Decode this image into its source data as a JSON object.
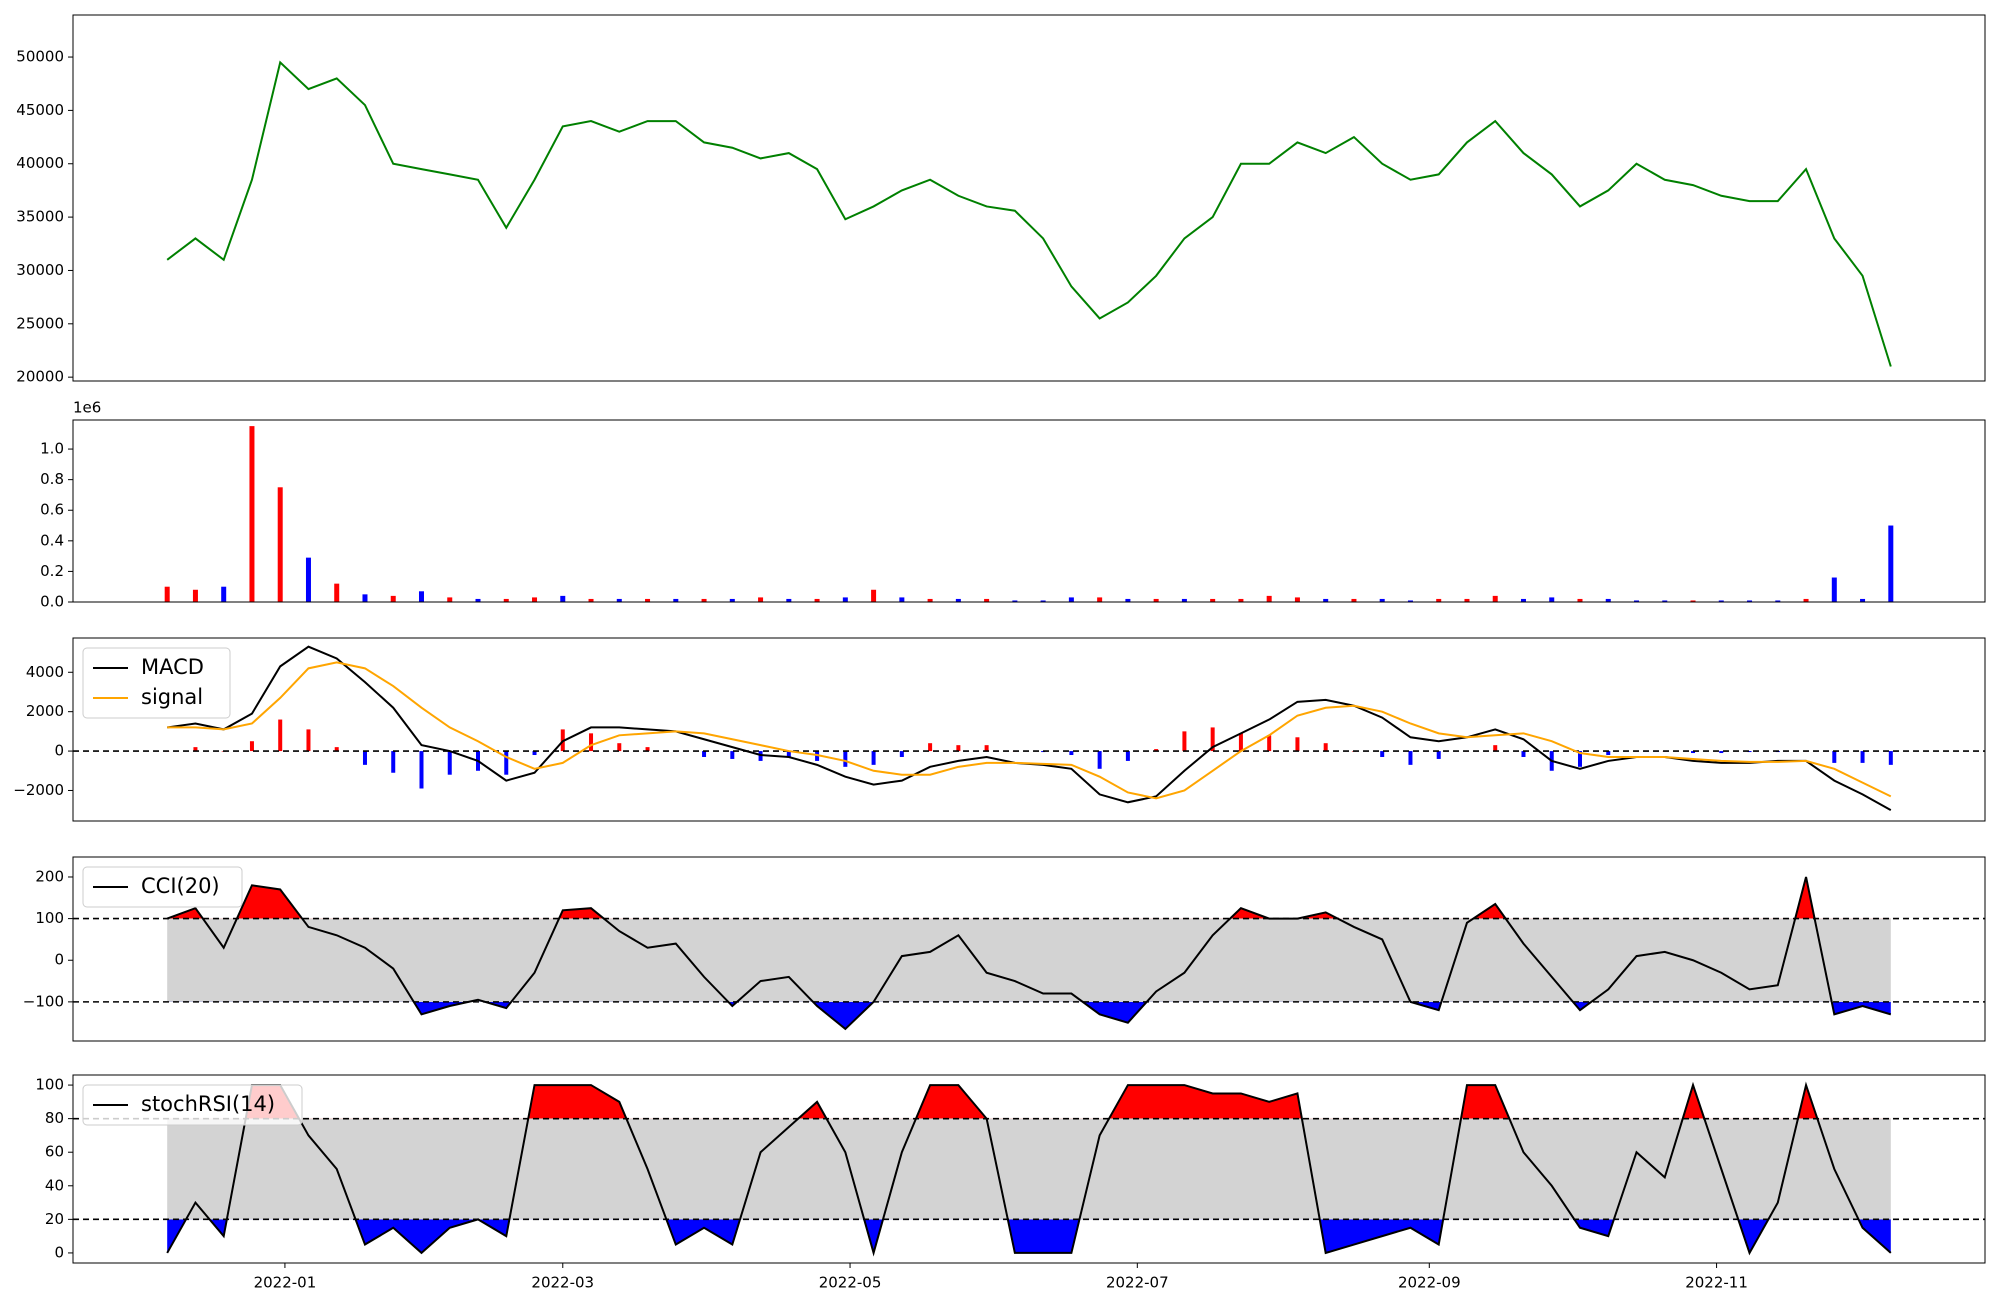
{
  "chart_data": [
    {
      "type": "line",
      "color": "green",
      "x": [
        "2021-12-07",
        "2021-12-13",
        "2021-12-19",
        "2021-12-25",
        "2021-12-31",
        "2022-01-06",
        "2022-01-12",
        "2022-01-18",
        "2022-01-24",
        "2022-01-30",
        "2022-02-05",
        "2022-02-11",
        "2022-02-17",
        "2022-02-23",
        "2022-03-01",
        "2022-03-07",
        "2022-03-13",
        "2022-03-19",
        "2022-03-25",
        "2022-03-31",
        "2022-04-06",
        "2022-04-12",
        "2022-04-18",
        "2022-04-24",
        "2022-04-30",
        "2022-05-06",
        "2022-05-12",
        "2022-05-18",
        "2022-05-24",
        "2022-05-30",
        "2022-06-05",
        "2022-06-11",
        "2022-06-17",
        "2022-06-23",
        "2022-06-29",
        "2022-07-05",
        "2022-07-11",
        "2022-07-17",
        "2022-07-23",
        "2022-07-29",
        "2022-08-04",
        "2022-08-10",
        "2022-08-16",
        "2022-08-22",
        "2022-08-28",
        "2022-09-03",
        "2022-09-09",
        "2022-09-15",
        "2022-09-21",
        "2022-09-27",
        "2022-10-03",
        "2022-10-09",
        "2022-10-15",
        "2022-10-21",
        "2022-10-27",
        "2022-11-02",
        "2022-11-08",
        "2022-11-14",
        "2022-11-20",
        "2022-11-26",
        "2022-12-02",
        "2022-12-08"
      ],
      "values": [
        31000,
        33000,
        31000,
        38500,
        49500,
        47000,
        48000,
        45500,
        40000,
        39500,
        39000,
        38500,
        34000,
        38500,
        43500,
        44000,
        43000,
        44000,
        44000,
        42000,
        41500,
        40500,
        41000,
        39500,
        34800,
        36000,
        37500,
        38500,
        37000,
        36000,
        35600,
        33000,
        28500,
        25500,
        27000,
        29500,
        33000,
        35000,
        40000,
        40000,
        42000,
        41000,
        42500,
        40000,
        38500,
        39000,
        42000,
        44000,
        41000,
        39000,
        36000,
        37500,
        40000,
        38500,
        38000,
        37000,
        36500,
        36500,
        39500,
        33000,
        29500,
        21000
      ],
      "xlim": [
        "2021-11-17",
        "2022-12-28"
      ],
      "ylim": [
        19640,
        53940
      ],
      "yticks": [
        20000,
        25000,
        30000,
        35000,
        40000,
        45000,
        50000
      ]
    },
    {
      "type": "bar",
      "offset_label": "1e6",
      "x": [
        "2021-12-07",
        "2021-12-13",
        "2021-12-19",
        "2021-12-25",
        "2021-12-31",
        "2022-01-06",
        "2022-01-12",
        "2022-01-18",
        "2022-01-24",
        "2022-01-30",
        "2022-02-05",
        "2022-02-11",
        "2022-02-17",
        "2022-02-23",
        "2022-03-01",
        "2022-03-07",
        "2022-03-13",
        "2022-03-19",
        "2022-03-25",
        "2022-03-31",
        "2022-04-06",
        "2022-04-12",
        "2022-04-18",
        "2022-04-24",
        "2022-04-30",
        "2022-05-06",
        "2022-05-12",
        "2022-05-18",
        "2022-05-24",
        "2022-05-30",
        "2022-06-05",
        "2022-06-11",
        "2022-06-17",
        "2022-06-23",
        "2022-06-29",
        "2022-07-05",
        "2022-07-11",
        "2022-07-17",
        "2022-07-23",
        "2022-07-29",
        "2022-08-04",
        "2022-08-10",
        "2022-08-16",
        "2022-08-22",
        "2022-08-28",
        "2022-09-03",
        "2022-09-09",
        "2022-09-15",
        "2022-09-21",
        "2022-09-27",
        "2022-10-03",
        "2022-10-09",
        "2022-10-15",
        "2022-10-21",
        "2022-10-27",
        "2022-11-02",
        "2022-11-08",
        "2022-11-14",
        "2022-11-20",
        "2022-11-26",
        "2022-12-02",
        "2022-12-08"
      ],
      "values": [
        0.1,
        0.08,
        0.1,
        1.15,
        0.75,
        0.29,
        0.12,
        0.05,
        0.04,
        0.07,
        0.03,
        0.02,
        0.02,
        0.03,
        0.04,
        0.02,
        0.02,
        0.02,
        0.02,
        0.02,
        0.02,
        0.03,
        0.02,
        0.02,
        0.03,
        0.08,
        0.03,
        0.02,
        0.02,
        0.02,
        0.01,
        0.01,
        0.03,
        0.03,
        0.02,
        0.02,
        0.02,
        0.02,
        0.02,
        0.04,
        0.03,
        0.02,
        0.02,
        0.02,
        0.01,
        0.02,
        0.02,
        0.04,
        0.02,
        0.03,
        0.02,
        0.02,
        0.01,
        0.01,
        0.01,
        0.01,
        0.01,
        0.01,
        0.02,
        0.16,
        0.02,
        0.5
      ],
      "colors": [
        "red",
        "red",
        "blue",
        "red",
        "red",
        "blue",
        "red",
        "blue",
        "red",
        "blue",
        "red",
        "blue",
        "red",
        "red",
        "blue",
        "red",
        "blue",
        "red",
        "blue",
        "red",
        "blue",
        "red",
        "blue",
        "red",
        "blue",
        "red",
        "blue",
        "red",
        "blue",
        "red",
        "blue",
        "blue",
        "blue",
        "red",
        "blue",
        "red",
        "blue",
        "red",
        "red",
        "red",
        "red",
        "blue",
        "red",
        "blue",
        "blue",
        "red",
        "red",
        "red",
        "blue",
        "blue",
        "red",
        "blue",
        "blue",
        "blue",
        "red",
        "blue",
        "blue",
        "blue",
        "red",
        "blue",
        "blue",
        "blue"
      ],
      "xlim": [
        "2021-11-17",
        "2022-12-28"
      ],
      "ylim": [
        0,
        1.19
      ],
      "yticks": [
        {
          "value": 0,
          "label": "0.0"
        },
        0.2,
        0.4,
        0.6,
        0.8,
        {
          "value": 1,
          "label": "1.0"
        }
      ]
    },
    {
      "type": "macd",
      "legend": "upper left",
      "x": [
        "2021-12-07",
        "2021-12-13",
        "2021-12-19",
        "2021-12-25",
        "2021-12-31",
        "2022-01-06",
        "2022-01-12",
        "2022-01-18",
        "2022-01-24",
        "2022-01-30",
        "2022-02-05",
        "2022-02-11",
        "2022-02-17",
        "2022-02-23",
        "2022-03-01",
        "2022-03-07",
        "2022-03-13",
        "2022-03-19",
        "2022-03-25",
        "2022-03-31",
        "2022-04-06",
        "2022-04-12",
        "2022-04-18",
        "2022-04-24",
        "2022-04-30",
        "2022-05-06",
        "2022-05-12",
        "2022-05-18",
        "2022-05-24",
        "2022-05-30",
        "2022-06-05",
        "2022-06-11",
        "2022-06-17",
        "2022-06-23",
        "2022-06-29",
        "2022-07-05",
        "2022-07-11",
        "2022-07-17",
        "2022-07-23",
        "2022-07-29",
        "2022-08-04",
        "2022-08-10",
        "2022-08-16",
        "2022-08-22",
        "2022-08-28",
        "2022-09-03",
        "2022-09-09",
        "2022-09-15",
        "2022-09-21",
        "2022-09-27",
        "2022-10-03",
        "2022-10-09",
        "2022-10-15",
        "2022-10-21",
        "2022-10-27",
        "2022-11-02",
        "2022-11-08",
        "2022-11-14",
        "2022-11-20",
        "2022-11-26",
        "2022-12-02",
        "2022-12-08"
      ],
      "series": [
        {
          "name": "MACD",
          "color": "black",
          "values": [
            1200,
            1400,
            1100,
            1900,
            4300,
            5300,
            4700,
            3500,
            2200,
            300,
            0,
            -500,
            -1500,
            -1100,
            500,
            1200,
            1200,
            1100,
            1000,
            600,
            200,
            -200,
            -300,
            -700,
            -1300,
            -1700,
            -1500,
            -800,
            -500,
            -300,
            -600,
            -700,
            -900,
            -2200,
            -2600,
            -2300,
            -1000,
            200,
            900,
            1600,
            2500,
            2600,
            2300,
            1700,
            700,
            500,
            700,
            1100,
            600,
            -500,
            -900,
            -500,
            -300,
            -300,
            -500,
            -600,
            -600,
            -500,
            -500,
            -1500,
            -2200,
            -3000
          ]
        },
        {
          "name": "signal",
          "color": "orange",
          "values": [
            1200,
            1200,
            1100,
            1400,
            2700,
            4200,
            4500,
            4200,
            3300,
            2200,
            1200,
            500,
            -300,
            -900,
            -600,
            300,
            800,
            900,
            1000,
            900,
            600,
            300,
            0,
            -200,
            -500,
            -1000,
            -1200,
            -1200,
            -800,
            -600,
            -600,
            -650,
            -700,
            -1300,
            -2100,
            -2400,
            -2000,
            -1000,
            0,
            800,
            1800,
            2200,
            2300,
            2000,
            1400,
            900,
            700,
            800,
            900,
            500,
            -100,
            -300,
            -300,
            -300,
            -400,
            -500,
            -550,
            -550,
            -500,
            -900,
            -1600,
            -2300
          ]
        }
      ],
      "histogram": {
        "up_color": "red",
        "down_color": "blue",
        "values": [
          0,
          200,
          0,
          500,
          1600,
          1100,
          200,
          -700,
          -1100,
          -1900,
          -1200,
          -1000,
          -1200,
          -200,
          1100,
          900,
          400,
          200,
          0,
          -300,
          -400,
          -500,
          -300,
          -500,
          -800,
          -700,
          -300,
          400,
          300,
          300,
          0,
          -50,
          -200,
          -900,
          -500,
          100,
          1000,
          1200,
          900,
          800,
          700,
          400,
          0,
          -300,
          -700,
          -400,
          0,
          300,
          -300,
          -1000,
          -800,
          -200,
          0,
          0,
          -100,
          -100,
          -50,
          -50,
          0,
          -600,
          -600,
          -700
        ]
      },
      "hline": 0,
      "xlim": [
        "2021-11-17",
        "2022-12-28"
      ],
      "ylim": [
        -3550,
        5740
      ],
      "yticks": [
        {
          "value": -2000,
          "label": "−2000"
        },
        0,
        2000,
        4000
      ]
    },
    {
      "type": "oscillator",
      "legend": "upper left",
      "x": [
        "2021-12-07",
        "2021-12-13",
        "2021-12-19",
        "2021-12-25",
        "2021-12-31",
        "2022-01-06",
        "2022-01-12",
        "2022-01-18",
        "2022-01-24",
        "2022-01-30",
        "2022-02-05",
        "2022-02-11",
        "2022-02-17",
        "2022-02-23",
        "2022-03-01",
        "2022-03-07",
        "2022-03-13",
        "2022-03-19",
        "2022-03-25",
        "2022-03-31",
        "2022-04-06",
        "2022-04-12",
        "2022-04-18",
        "2022-04-24",
        "2022-04-30",
        "2022-05-06",
        "2022-05-12",
        "2022-05-18",
        "2022-05-24",
        "2022-05-30",
        "2022-06-05",
        "2022-06-11",
        "2022-06-17",
        "2022-06-23",
        "2022-06-29",
        "2022-07-05",
        "2022-07-11",
        "2022-07-17",
        "2022-07-23",
        "2022-07-29",
        "2022-08-04",
        "2022-08-10",
        "2022-08-16",
        "2022-08-22",
        "2022-08-28",
        "2022-09-03",
        "2022-09-09",
        "2022-09-15",
        "2022-09-21",
        "2022-09-27",
        "2022-10-03",
        "2022-10-09",
        "2022-10-15",
        "2022-10-21",
        "2022-10-27",
        "2022-11-02",
        "2022-11-08",
        "2022-11-14",
        "2022-11-20",
        "2022-11-26",
        "2022-12-02",
        "2022-12-08"
      ],
      "series": [
        {
          "name": "CCI(20)",
          "color": "black",
          "values": [
            100,
            125,
            30,
            180,
            170,
            80,
            60,
            30,
            -20,
            -130,
            -110,
            -95,
            -115,
            -30,
            120,
            125,
            70,
            30,
            40,
            -40,
            -110,
            -50,
            -40,
            -110,
            -165,
            -100,
            10,
            20,
            60,
            -30,
            -50,
            -80,
            -80,
            -130,
            -150,
            -75,
            -30,
            60,
            125,
            100,
            100,
            115,
            80,
            50,
            -100,
            -120,
            90,
            135,
            40,
            -40,
            -120,
            -70,
            10,
            20,
            0,
            -30,
            -70,
            -60,
            200,
            -130,
            -110,
            -130
          ]
        }
      ],
      "upper": 100,
      "lower": -100,
      "band_color": "lightgray",
      "upper_color": "red",
      "lower_color": "blue",
      "xlim": [
        "2021-11-17",
        "2022-12-28"
      ],
      "ylim": [
        -194,
        248
      ],
      "yticks": [
        {
          "value": -100,
          "label": "−100"
        },
        0,
        100,
        200
      ]
    },
    {
      "type": "oscillator",
      "legend": "upper left",
      "x": [
        "2021-12-07",
        "2021-12-13",
        "2021-12-19",
        "2021-12-25",
        "2021-12-31",
        "2022-01-06",
        "2022-01-12",
        "2022-01-18",
        "2022-01-24",
        "2022-01-30",
        "2022-02-05",
        "2022-02-11",
        "2022-02-17",
        "2022-02-23",
        "2022-03-01",
        "2022-03-07",
        "2022-03-13",
        "2022-03-19",
        "2022-03-25",
        "2022-03-31",
        "2022-04-06",
        "2022-04-12",
        "2022-04-18",
        "2022-04-24",
        "2022-04-30",
        "2022-05-06",
        "2022-05-12",
        "2022-05-18",
        "2022-05-24",
        "2022-05-30",
        "2022-06-05",
        "2022-06-11",
        "2022-06-17",
        "2022-06-23",
        "2022-06-29",
        "2022-07-05",
        "2022-07-11",
        "2022-07-17",
        "2022-07-23",
        "2022-07-29",
        "2022-08-04",
        "2022-08-10",
        "2022-08-16",
        "2022-08-22",
        "2022-08-28",
        "2022-09-03",
        "2022-09-09",
        "2022-09-15",
        "2022-09-21",
        "2022-09-27",
        "2022-10-03",
        "2022-10-09",
        "2022-10-15",
        "2022-10-21",
        "2022-10-27",
        "2022-11-02",
        "2022-11-08",
        "2022-11-14",
        "2022-11-20",
        "2022-11-26",
        "2022-12-02",
        "2022-12-08"
      ],
      "series": [
        {
          "name": "stochRSI(14)",
          "color": "black",
          "values": [
            0,
            30,
            10,
            100,
            100,
            70,
            50,
            5,
            15,
            0,
            15,
            20,
            10,
            100,
            100,
            100,
            90,
            50,
            5,
            15,
            5,
            60,
            75,
            90,
            60,
            0,
            60,
            100,
            100,
            80,
            0,
            0,
            0,
            70,
            100,
            100,
            100,
            95,
            95,
            90,
            95,
            0,
            5,
            10,
            15,
            5,
            100,
            100,
            60,
            40,
            15,
            10,
            60,
            45,
            100,
            50,
            0,
            30,
            100,
            50,
            15,
            0
          ]
        }
      ],
      "upper": 80,
      "lower": 20,
      "band_color": "lightgray",
      "upper_color": "red",
      "lower_color": "blue",
      "xlim": [
        "2021-11-17",
        "2022-12-28"
      ],
      "ylim": [
        -6,
        106
      ],
      "yticks": [
        0,
        20,
        40,
        60,
        80,
        100
      ],
      "xticks": [
        "2022-01",
        "2022-03",
        "2022-05",
        "2022-07",
        "2022-09",
        "2022-11"
      ]
    }
  ]
}
